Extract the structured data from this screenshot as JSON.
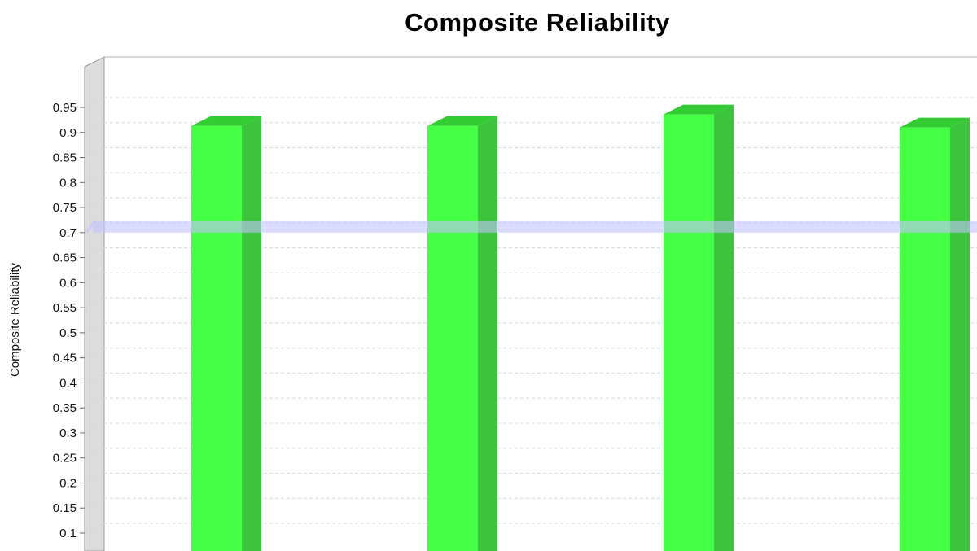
{
  "chart_data": {
    "type": "bar",
    "title": "Composite Reliability",
    "ylabel": "Composite Reliability",
    "xlabel": "",
    "ylim": [
      0.07,
      0.99
    ],
    "yticks": [
      0.1,
      0.15,
      0.2,
      0.25,
      0.3,
      0.35,
      0.4,
      0.45,
      0.5,
      0.55,
      0.6,
      0.65,
      0.7,
      0.75,
      0.8,
      0.85,
      0.9,
      0.95
    ],
    "ytick_labels": [
      "0.1",
      "0.15",
      "0.2",
      "0.25",
      "0.3",
      "0.35",
      "0.4",
      "0.45",
      "0.5",
      "0.55",
      "0.6",
      "0.65",
      "0.7",
      "0.75",
      "0.8",
      "0.85",
      "0.9",
      "0.95"
    ],
    "values": [
      0.913,
      0.913,
      0.936,
      0.91
    ],
    "threshold": 0.7,
    "grid": true,
    "bar_color": "#44ff44",
    "bar_side_color": "#3cc43c",
    "bar_top_color": "#33cc33",
    "threshold_color": "#c3c3ff",
    "gridline_color": "#d8d8d8",
    "back_wall_color": "#dcdcdc"
  }
}
